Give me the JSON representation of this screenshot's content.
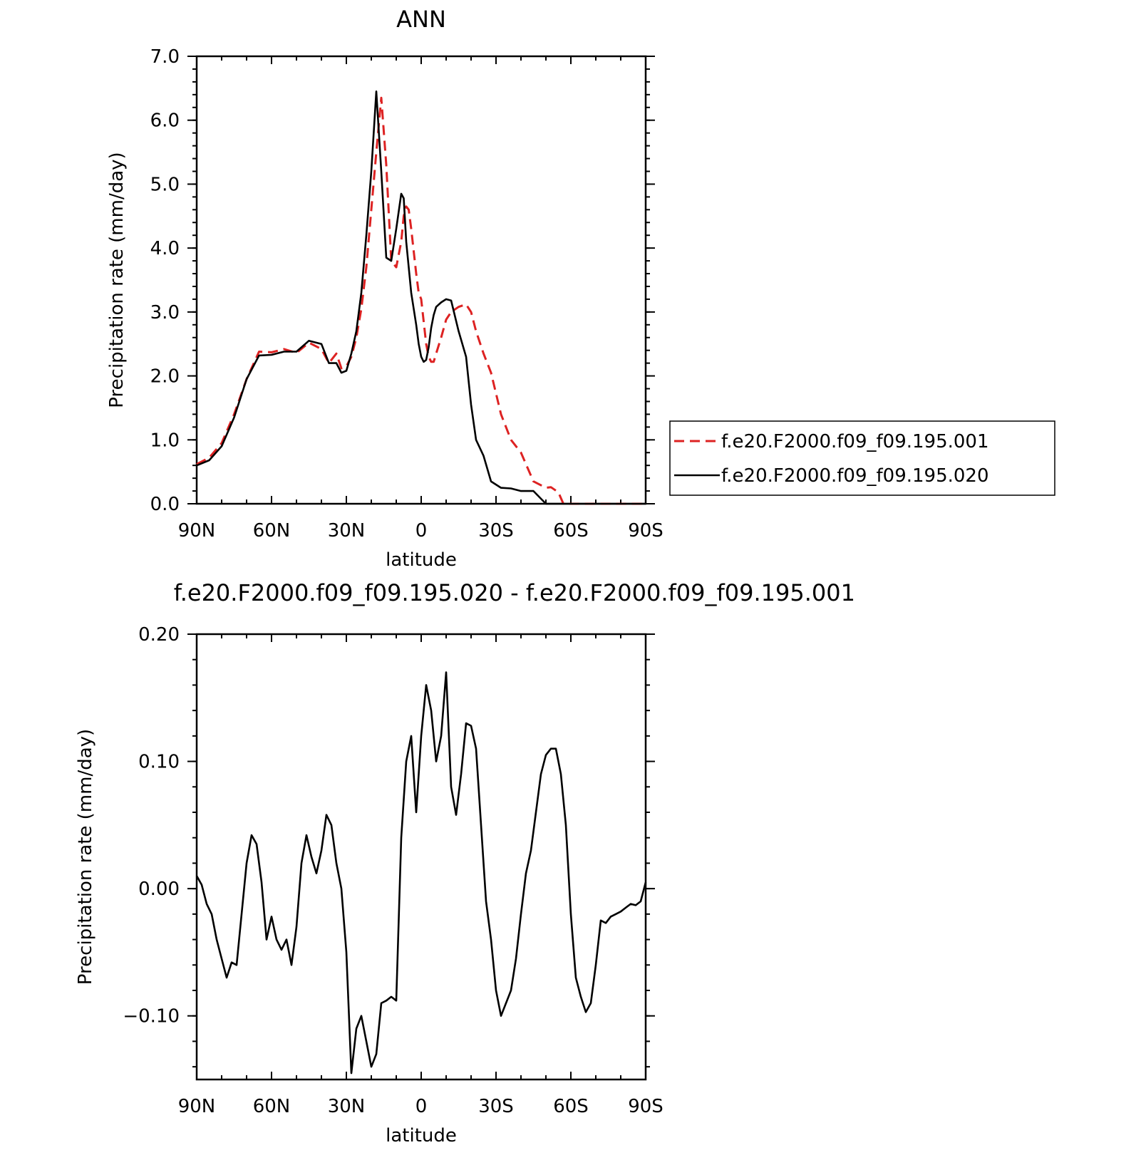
{
  "chart_data": [
    {
      "type": "line",
      "title": "ANN",
      "xlabel": "latitude",
      "ylabel": "Precipitation rate (mm/day)",
      "x_ticks": [
        "90N",
        "60N",
        "30N",
        "0",
        "30S",
        "60S",
        "90S"
      ],
      "xlim": [
        90,
        -90
      ],
      "ylim": [
        0,
        7
      ],
      "y_ticks": [
        "0.0",
        "1.0",
        "2.0",
        "3.0",
        "4.0",
        "5.0",
        "6.0",
        "7.0"
      ],
      "legend_position": "right",
      "x": [
        90,
        85,
        80,
        75,
        70,
        65,
        60,
        55,
        50,
        45,
        40,
        37,
        34,
        32,
        30,
        28,
        26,
        24,
        22,
        20,
        18,
        16,
        14,
        12,
        10,
        8,
        7,
        6,
        5,
        4,
        2,
        1,
        0,
        -1,
        -2,
        -3,
        -4,
        -5,
        -6,
        -8,
        -10,
        -12,
        -15,
        -18,
        -20,
        -22,
        -25,
        -28,
        -32,
        -36,
        -40,
        -45,
        -50,
        -52,
        -55,
        -57,
        -60,
        -63,
        -66,
        -70,
        -73,
        -75,
        -77,
        -80,
        -83,
        -86,
        -88,
        -90
      ],
      "series": [
        {
          "name": "f.e20.F2000.f09_f09.195.001",
          "color": "#dd2222",
          "dash": "dashed",
          "values": [
            0.62,
            0.72,
            0.95,
            1.4,
            1.95,
            2.38,
            2.37,
            2.42,
            2.36,
            2.52,
            2.42,
            2.2,
            2.35,
            2.12,
            2.15,
            2.3,
            2.6,
            3.05,
            3.7,
            4.6,
            5.5,
            6.35,
            5.3,
            3.8,
            3.7,
            4.1,
            4.5,
            4.65,
            4.6,
            4.3,
            3.6,
            3.3,
            3.2,
            2.85,
            2.5,
            2.3,
            2.22,
            2.22,
            2.35,
            2.6,
            2.88,
            3.0,
            3.08,
            3.12,
            3.0,
            2.7,
            2.35,
            2.05,
            1.4,
            1.0,
            0.8,
            0.35,
            0.25,
            0.26,
            0.18,
            0.0,
            0.0,
            0.0,
            0.0,
            0.0,
            0.0,
            0.0,
            0.0,
            0.0,
            0.0,
            0.0,
            0.0,
            0.0
          ]
        },
        {
          "name": "f.e20.F2000.f09_f09.195.020",
          "color": "#000000",
          "dash": "solid",
          "values": [
            0.6,
            0.68,
            0.9,
            1.35,
            1.95,
            2.32,
            2.33,
            2.38,
            2.38,
            2.55,
            2.5,
            2.2,
            2.2,
            2.05,
            2.08,
            2.35,
            2.7,
            3.3,
            4.2,
            5.2,
            6.45,
            5.2,
            3.85,
            3.8,
            4.3,
            4.85,
            4.78,
            4.1,
            3.7,
            3.3,
            2.8,
            2.5,
            2.3,
            2.22,
            2.25,
            2.45,
            2.75,
            2.95,
            3.08,
            3.15,
            3.2,
            3.18,
            2.7,
            2.3,
            1.55,
            1.0,
            0.75,
            0.35,
            0.25,
            0.24,
            0.2,
            0.2,
            0.0,
            0.0,
            0.0,
            0.0,
            0.0,
            0.0,
            0.0,
            0.0,
            0.0,
            0.0,
            0.0,
            0.0,
            0.0,
            0.0,
            0.0,
            0.0
          ]
        }
      ]
    },
    {
      "type": "line",
      "title": "f.e20.F2000.f09_f09.195.020 - f.e20.F2000.f09_f09.195.001",
      "xlabel": "latitude",
      "ylabel": "Precipitation rate (mm/day)",
      "x_ticks": [
        "90N",
        "60N",
        "30N",
        "0",
        "30S",
        "60S",
        "90S"
      ],
      "xlim": [
        90,
        -90
      ],
      "ylim": [
        -0.15,
        0.2
      ],
      "y_ticks": [
        "-0.10",
        "0.00",
        "0.10",
        "0.20"
      ],
      "x": [
        90,
        88,
        86,
        84,
        82,
        80,
        78,
        76,
        74,
        72,
        70,
        68,
        66,
        64,
        62,
        60,
        58,
        56,
        54,
        52,
        50,
        48,
        46,
        44,
        42,
        40,
        38,
        36,
        34,
        32,
        30,
        28,
        26,
        24,
        22,
        20,
        18,
        16,
        14,
        12,
        10,
        8,
        6,
        4,
        2,
        0,
        -2,
        -4,
        -6,
        -8,
        -10,
        -12,
        -14,
        -16,
        -18,
        -20,
        -22,
        -24,
        -26,
        -28,
        -30,
        -32,
        -34,
        -36,
        -38,
        -40,
        -42,
        -44,
        -46,
        -48,
        -50,
        -52,
        -54,
        -56,
        -58,
        -60,
        -62,
        -64,
        -66,
        -68,
        -70,
        -72,
        -74,
        -76,
        -78,
        -80,
        -82,
        -84,
        -86,
        -88,
        -90
      ],
      "series": [
        {
          "name": "",
          "color": "#000000",
          "dash": "solid",
          "values": [
            0.01,
            0.003,
            -0.012,
            -0.02,
            -0.04,
            -0.055,
            -0.07,
            -0.058,
            -0.06,
            -0.02,
            0.02,
            0.042,
            0.035,
            0.005,
            -0.04,
            -0.022,
            -0.04,
            -0.048,
            -0.04,
            -0.06,
            -0.03,
            0.02,
            0.042,
            0.025,
            0.012,
            0.03,
            0.058,
            0.05,
            0.02,
            0.0,
            -0.05,
            -0.145,
            -0.11,
            -0.1,
            -0.12,
            -0.14,
            -0.13,
            -0.09,
            -0.088,
            -0.085,
            -0.088,
            0.04,
            0.1,
            0.12,
            0.06,
            0.12,
            0.16,
            0.14,
            0.1,
            0.12,
            0.17,
            0.08,
            0.058,
            0.09,
            0.13,
            0.128,
            0.11,
            0.05,
            -0.01,
            -0.04,
            -0.08,
            -0.1,
            -0.09,
            -0.08,
            -0.055,
            -0.02,
            0.012,
            0.03,
            0.06,
            0.09,
            0.105,
            0.11,
            0.11,
            0.09,
            0.05,
            -0.02,
            -0.07,
            -0.085,
            -0.097,
            -0.09,
            -0.06,
            -0.025,
            -0.027,
            -0.022,
            -0.02,
            -0.018,
            -0.015,
            -0.012,
            -0.013,
            -0.01,
            0.005
          ]
        }
      ]
    }
  ]
}
